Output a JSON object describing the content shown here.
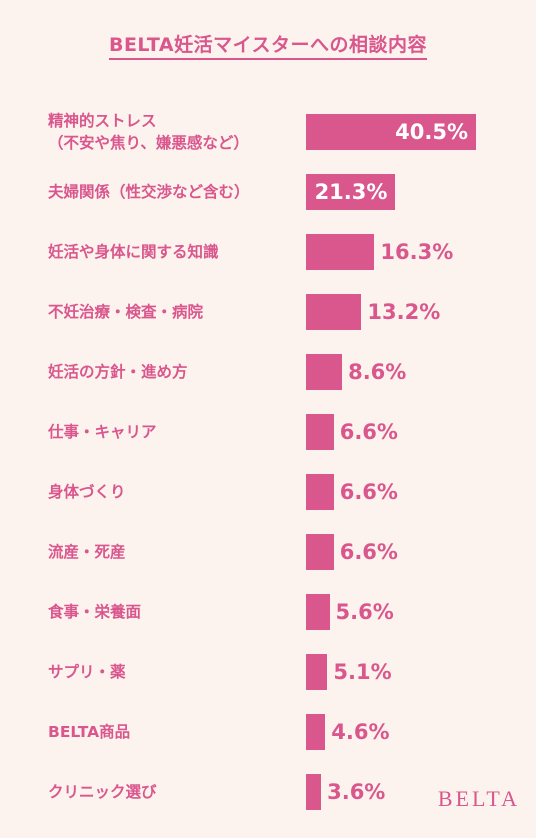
{
  "chart_data": {
    "type": "bar",
    "orientation": "horizontal",
    "title": "BELTA妊活マイスターへの相談内容",
    "categories": [
      [
        "精神的ストレス",
        "（不安や焦り、嫌悪感など）"
      ],
      [
        "夫婦関係（性交渉など含む）"
      ],
      [
        "妊活や身体に関する知識"
      ],
      [
        "不妊治療・検査・病院"
      ],
      [
        "妊活の方針・進め方"
      ],
      [
        "仕事・キャリア"
      ],
      [
        "身体づくり"
      ],
      [
        "流産・死産"
      ],
      [
        "食事・栄養面"
      ],
      [
        "サプリ・薬"
      ],
      [
        "BELTA商品"
      ],
      [
        "クリニック選び"
      ]
    ],
    "values": [
      40.5,
      21.3,
      16.3,
      13.2,
      8.6,
      6.6,
      6.6,
      6.6,
      5.6,
      5.1,
      4.6,
      3.6
    ],
    "value_labels": [
      "40.5%",
      "21.3%",
      "16.3%",
      "13.2%",
      "8.6%",
      "6.6%",
      "6.6%",
      "6.6%",
      "5.6%",
      "5.1%",
      "4.6%",
      "3.6%"
    ],
    "value_label_placement": [
      "inside",
      "inside",
      "outside",
      "outside",
      "outside",
      "outside",
      "outside",
      "outside",
      "outside",
      "outside",
      "outside",
      "outside"
    ],
    "xlim": [
      0,
      40.5
    ],
    "grid": false,
    "bar_color": "#d9578d"
  },
  "brand": "BELTA",
  "colors": {
    "accent": "#d9578d",
    "background": "#fcf3ee"
  }
}
